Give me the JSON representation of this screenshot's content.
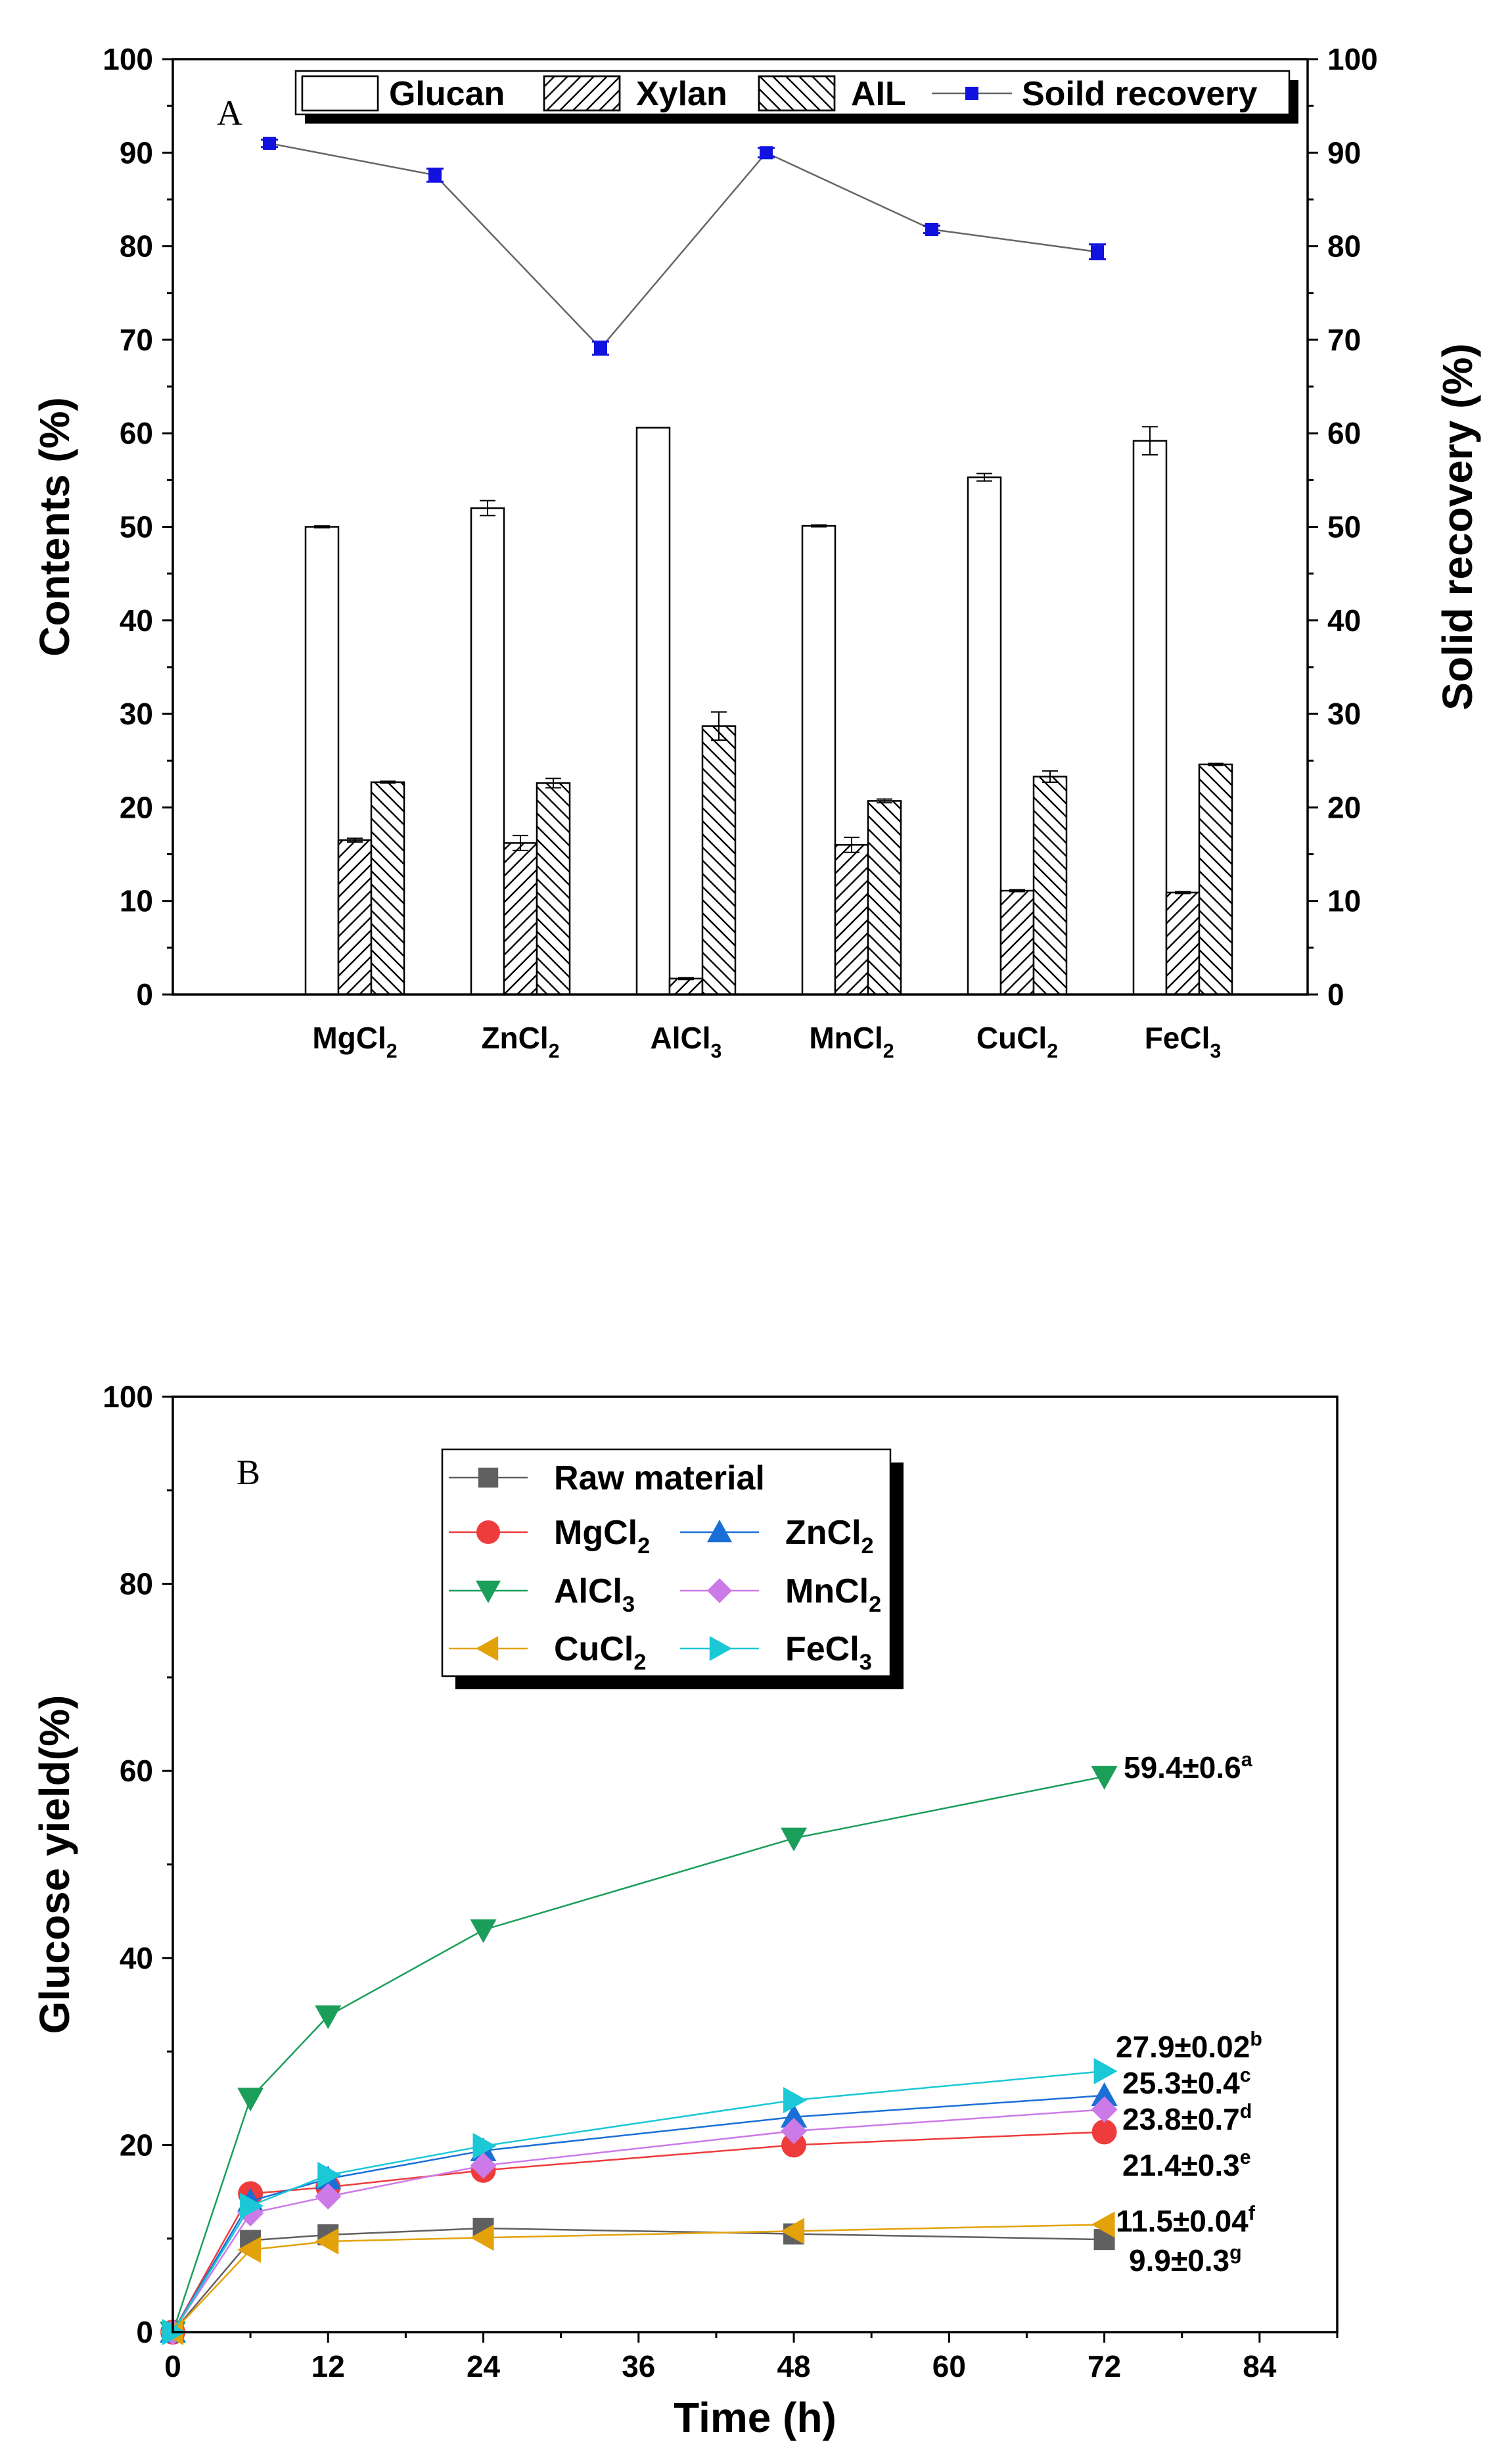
{
  "chart_data": [
    {
      "type": "bar",
      "panel_label": "A",
      "ylabel": "Contents (%)",
      "y2label": "Solid recovery (%)",
      "ylim": [
        0,
        100
      ],
      "y2lim": [
        0,
        100
      ],
      "yticks": [
        "0",
        "10",
        "20",
        "30",
        "40",
        "50",
        "60",
        "70",
        "80",
        "90",
        "100"
      ],
      "categories": [
        {
          "base": "MgCl",
          "sub": "2"
        },
        {
          "base": "ZnCl",
          "sub": "2"
        },
        {
          "base": "AlCl",
          "sub": "3"
        },
        {
          "base": "MnCl",
          "sub": "2"
        },
        {
          "base": "CuCl",
          "sub": "2"
        },
        {
          "base": "FeCl",
          "sub": "3"
        }
      ],
      "legend_position": "top",
      "series": [
        {
          "name": "Glucan",
          "pattern": "none",
          "values": [
            50.0,
            52.0,
            60.6,
            50.1,
            55.3,
            59.2
          ],
          "errors": [
            0.1,
            0.8,
            0.0,
            0.1,
            0.4,
            1.5
          ]
        },
        {
          "name": "Xylan",
          "pattern": "forward-hatch",
          "values": [
            16.5,
            16.2,
            1.7,
            16.0,
            11.1,
            10.9
          ],
          "errors": [
            0.2,
            0.8,
            0.1,
            0.8,
            0.1,
            0.1
          ]
        },
        {
          "name": "AIL",
          "pattern": "back-hatch",
          "values": [
            22.7,
            22.6,
            28.7,
            20.7,
            23.3,
            24.6
          ],
          "errors": [
            0.1,
            0.5,
            1.5,
            0.2,
            0.6,
            0.1
          ]
        }
      ],
      "line_series": {
        "name": "Soild recovery",
        "axis": "right",
        "color": "#1212e0",
        "values": [
          91.0,
          87.6,
          69.1,
          90.0,
          81.8,
          79.4
        ],
        "errors": [
          0.4,
          0.7,
          0.7,
          0.5,
          0.4,
          0.8
        ]
      }
    },
    {
      "type": "line",
      "panel_label": "B",
      "xlabel": "Time (h)",
      "ylabel": "Glucose yield(%)",
      "xlim": [
        0,
        90
      ],
      "ylim": [
        0,
        100
      ],
      "xticks": [
        "0",
        "12",
        "24",
        "36",
        "48",
        "60",
        "72",
        "84"
      ],
      "yticks": [
        "0",
        "20",
        "40",
        "60",
        "80",
        "100"
      ],
      "x": [
        0,
        6,
        12,
        24,
        48,
        72
      ],
      "legend_position": "top-left",
      "series": [
        {
          "base": "Raw material",
          "sub": "",
          "marker": "square",
          "color": "#606060",
          "values": [
            0,
            9.8,
            10.4,
            11.1,
            10.5,
            9.9
          ],
          "annotation": {
            "text": "9.9±0.3",
            "sup": "g"
          }
        },
        {
          "base": "MgCl",
          "sub": "2",
          "marker": "circle",
          "color": "#ee3b3b",
          "values": [
            0,
            14.8,
            15.5,
            17.3,
            20.0,
            21.4
          ],
          "annotation": {
            "text": "21.4±0.3",
            "sup": "e"
          }
        },
        {
          "base": "ZnCl",
          "sub": "2",
          "marker": "triangle-up",
          "color": "#1a6fd6",
          "values": [
            0,
            14.0,
            16.4,
            19.4,
            23.0,
            25.3
          ],
          "annotation": {
            "text": "25.3±0.4",
            "sup": "c"
          }
        },
        {
          "base": "AlCl",
          "sub": "3",
          "marker": "triangle-down",
          "color": "#1b9e5a",
          "values": [
            0,
            25.0,
            33.8,
            43.0,
            52.8,
            59.4
          ],
          "annotation": {
            "text": "59.4±0.6",
            "sup": "a"
          }
        },
        {
          "base": "MnCl",
          "sub": "2",
          "marker": "diamond",
          "color": "#cc7ae8",
          "values": [
            0,
            12.7,
            14.5,
            17.8,
            21.5,
            23.8
          ],
          "annotation": {
            "text": "23.8±0.7",
            "sup": "d"
          }
        },
        {
          "base": "CuCl",
          "sub": "2",
          "marker": "triangle-left",
          "color": "#e3a20a",
          "values": [
            0,
            8.8,
            9.7,
            10.1,
            10.8,
            11.5
          ],
          "annotation": {
            "text": "11.5±0.04",
            "sup": "f"
          }
        },
        {
          "base": "FeCl",
          "sub": "3",
          "marker": "triangle-right",
          "color": "#1bc8d6",
          "values": [
            0,
            13.5,
            16.8,
            19.9,
            24.8,
            27.9
          ],
          "annotation": {
            "text": "27.9±0.02",
            "sup": "b"
          }
        }
      ]
    }
  ]
}
